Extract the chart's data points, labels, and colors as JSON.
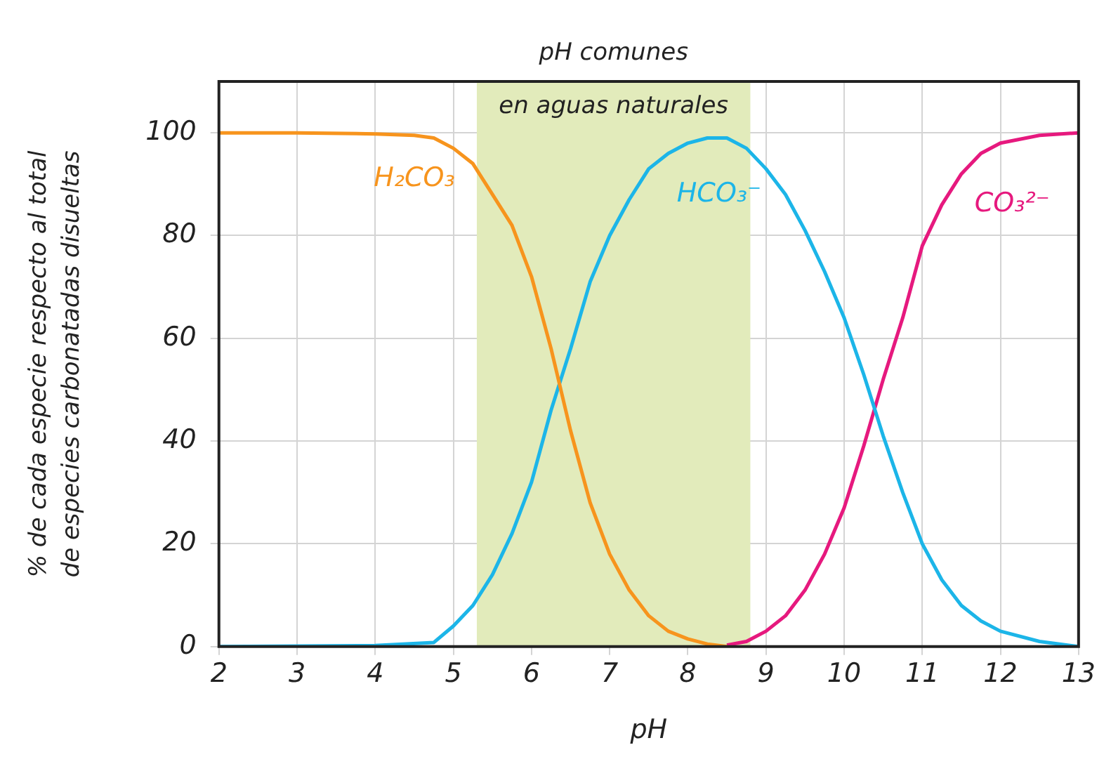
{
  "chart_data": {
    "type": "line",
    "xlabel": "pH",
    "ylabel": "% de cada especie respecto al total de especies carbonatadas disueltas",
    "xlim": [
      2,
      13
    ],
    "xticks": [
      2,
      3,
      4,
      5,
      6,
      7,
      8,
      9,
      10,
      11,
      12,
      13
    ],
    "ylim": [
      0,
      110
    ],
    "yticks": [
      0,
      20,
      40,
      60,
      80,
      100
    ],
    "grid": true,
    "legend": false,
    "marker": "none",
    "line_style": "solid",
    "bands": [
      {
        "axis": "x",
        "from": 5.3,
        "to": 8.8,
        "label": "pH comunes en aguas naturales",
        "color": "#e2ebbb"
      }
    ],
    "series": [
      {
        "name": "H₂CO₃",
        "color": "#f7941d",
        "x": [
          2,
          3,
          4,
          4.5,
          4.75,
          5,
          5.25,
          5.5,
          5.75,
          6,
          6.25,
          6.5,
          6.75,
          7,
          7.25,
          7.5,
          7.75,
          8,
          8.25,
          8.5
        ],
        "values": [
          100,
          100,
          99.8,
          99.5,
          99,
          97,
          94,
          88,
          82,
          72,
          58,
          42,
          28,
          18,
          11,
          6,
          3,
          1.5,
          0.5,
          0
        ]
      },
      {
        "name": "HCO₃⁻",
        "color": "#1cb5e8",
        "x": [
          2,
          4,
          4.75,
          5,
          5.25,
          5.5,
          5.75,
          6,
          6.25,
          6.5,
          6.75,
          7,
          7.25,
          7.5,
          7.75,
          8,
          8.25,
          8.5,
          8.75,
          9,
          9.25,
          9.5,
          9.75,
          10,
          10.25,
          10.5,
          10.75,
          11,
          11.25,
          11.5,
          11.75,
          12,
          12.5,
          13
        ],
        "values": [
          0,
          0.2,
          0.8,
          4,
          8,
          14,
          22,
          32,
          46,
          58,
          71,
          80,
          87,
          93,
          96,
          98,
          99,
          99,
          97,
          93,
          88,
          81,
          73,
          64,
          53,
          41,
          30,
          20,
          13,
          8,
          5,
          3,
          1,
          0
        ]
      },
      {
        "name": "CO₃²⁻",
        "color": "#e6197e",
        "x": [
          8.5,
          8.75,
          9,
          9.25,
          9.5,
          9.75,
          10,
          10.25,
          10.5,
          10.75,
          11,
          11.25,
          11.5,
          11.75,
          12,
          12.5,
          13
        ],
        "values": [
          0.3,
          1,
          3,
          6,
          11,
          18,
          27,
          39,
          52,
          64,
          78,
          86,
          92,
          96,
          98,
          99.5,
          100
        ]
      }
    ]
  }
}
